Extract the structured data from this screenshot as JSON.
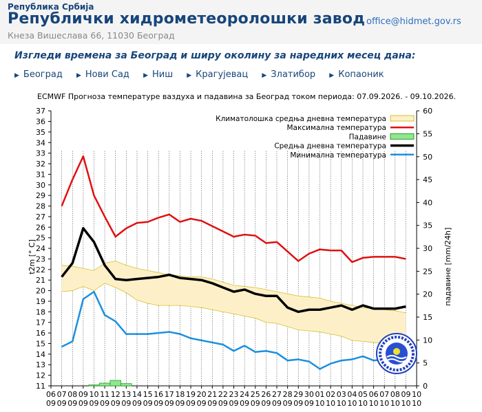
{
  "header": {
    "republic": "Република Србија",
    "institute": "Републички хидрометеоролошки завод",
    "address": "Кнеза Вишеслава 66, 11030  Београд",
    "email": "office@hidmet.gov.rs"
  },
  "subtitle": "Изгледи времена за Београд и ширу околину за наредних месец дана:",
  "cities": [
    "Београд",
    "Нови Сад",
    "Ниш",
    "Крагујевац",
    "Златибор",
    "Копаоник"
  ],
  "colors": {
    "brand": "#17457a",
    "max": "#e01010",
    "mean": "#000000",
    "min": "#1a8fe0",
    "clim_fill": "#fdf0c8",
    "clim_edge": "#d4c030",
    "precip": "#8ee88e"
  },
  "chart_data": {
    "type": "line",
    "title": "ECMWF Прогноза температуре ваздуха и падавина за Београд током периода: 07.09.2026. - 09.10.2026.",
    "ylabel": "t2m [° C]",
    "y2label": "падавине [mm/24h]",
    "ylim": [
      11,
      37
    ],
    "y2lim": [
      0,
      60
    ],
    "x_days": [
      "06",
      "07",
      "08",
      "09",
      "10",
      "11",
      "12",
      "13",
      "14",
      "15",
      "16",
      "17",
      "18",
      "19",
      "20",
      "21",
      "22",
      "23",
      "24",
      "25",
      "26",
      "27",
      "28",
      "29",
      "30",
      "01",
      "02",
      "03",
      "04",
      "05",
      "06",
      "07",
      "08",
      "09",
      "10"
    ],
    "x_months": [
      "09",
      "09",
      "09",
      "09",
      "09",
      "09",
      "09",
      "09",
      "09",
      "09",
      "09",
      "09",
      "09",
      "09",
      "09",
      "09",
      "09",
      "09",
      "09",
      "09",
      "09",
      "09",
      "09",
      "09",
      "09",
      "10",
      "10",
      "10",
      "10",
      "10",
      "10",
      "10",
      "10",
      "10",
      "10"
    ],
    "legend": [
      {
        "label": "Климатолошка средња дневна температура",
        "key": "clim"
      },
      {
        "label": "Максимална температура",
        "key": "max"
      },
      {
        "label": "Падавине",
        "key": "precip"
      },
      {
        "label": "Средња дневна температура",
        "key": "mean"
      },
      {
        "label": "Минимална температура",
        "key": "min"
      }
    ],
    "x_index_start": 1,
    "series": [
      {
        "name": "Максимална температура",
        "key": "max",
        "values": [
          28,
          30.5,
          32.7,
          29,
          27,
          25.1,
          25.9,
          26.4,
          26.5,
          26.9,
          27.2,
          26.5,
          26.8,
          26.6,
          26.1,
          25.6,
          25.1,
          25.3,
          25.2,
          24.5,
          24.6,
          23.7,
          22.8,
          23.5,
          23.9,
          23.8,
          23.8,
          22.7,
          23.1,
          23.2,
          23.2,
          23.2,
          23
        ]
      },
      {
        "name": "Средња дневна температура",
        "key": "mean",
        "values": [
          21.3,
          22.6,
          25.9,
          24.6,
          22.4,
          21.1,
          21,
          21.1,
          21.2,
          21.3,
          21.5,
          21.2,
          21.1,
          21,
          20.7,
          20.3,
          19.9,
          20.1,
          19.7,
          19.5,
          19.5,
          18.4,
          18,
          18.2,
          18.2,
          18.4,
          18.6,
          18.2,
          18.6,
          18.3,
          18.3,
          18.3,
          18.5
        ]
      },
      {
        "name": "Минимална температура",
        "key": "min",
        "values": [
          14.7,
          15.2,
          19.2,
          19.9,
          17.7,
          17.1,
          15.9,
          15.9,
          15.9,
          16,
          16.1,
          15.9,
          15.5,
          15.3,
          15.1,
          14.9,
          14.3,
          14.8,
          14.2,
          14.3,
          14.1,
          13.4,
          13.5,
          13.3,
          12.6,
          13.1,
          13.4,
          13.5,
          13.8,
          13.4,
          13.5,
          13.5,
          13.5
        ]
      },
      {
        "name": "Климатолошка средња дневна температура (горња граница)",
        "key": "clim_hi",
        "values": [
          22.4,
          22.3,
          22.1,
          21.9,
          22.6,
          22.8,
          22.4,
          22.1,
          21.9,
          21.7,
          21.5,
          21.4,
          21.3,
          21.3,
          21.1,
          20.8,
          20.5,
          20.4,
          20.3,
          20.1,
          19.9,
          19.7,
          19.5,
          19.4,
          19.3,
          19,
          18.8,
          18.6,
          18.4,
          18.3,
          18.2,
          18.1,
          17.9
        ]
      },
      {
        "name": "Климатолошка средња дневна температура (доња граница)",
        "key": "clim_lo",
        "values": [
          19.9,
          20,
          20.4,
          20,
          20.7,
          20.3,
          19.8,
          19.1,
          18.8,
          18.6,
          18.6,
          18.6,
          18.5,
          18.4,
          18.2,
          18,
          17.8,
          17.6,
          17.4,
          17,
          16.9,
          16.6,
          16.3,
          16.2,
          16.1,
          15.9,
          15.7,
          15.3,
          15.2,
          15.1,
          15,
          15.2,
          15.1
        ]
      },
      {
        "name": "Падавине",
        "key": "precip",
        "values": [
          0,
          0,
          0,
          0.2,
          0.6,
          1.2,
          0.5,
          0,
          0,
          0,
          0,
          0,
          0,
          0,
          0,
          0,
          0,
          0,
          0,
          0,
          0,
          0,
          0,
          0,
          0,
          0,
          0,
          0,
          0,
          0,
          0,
          0,
          0
        ]
      }
    ]
  }
}
